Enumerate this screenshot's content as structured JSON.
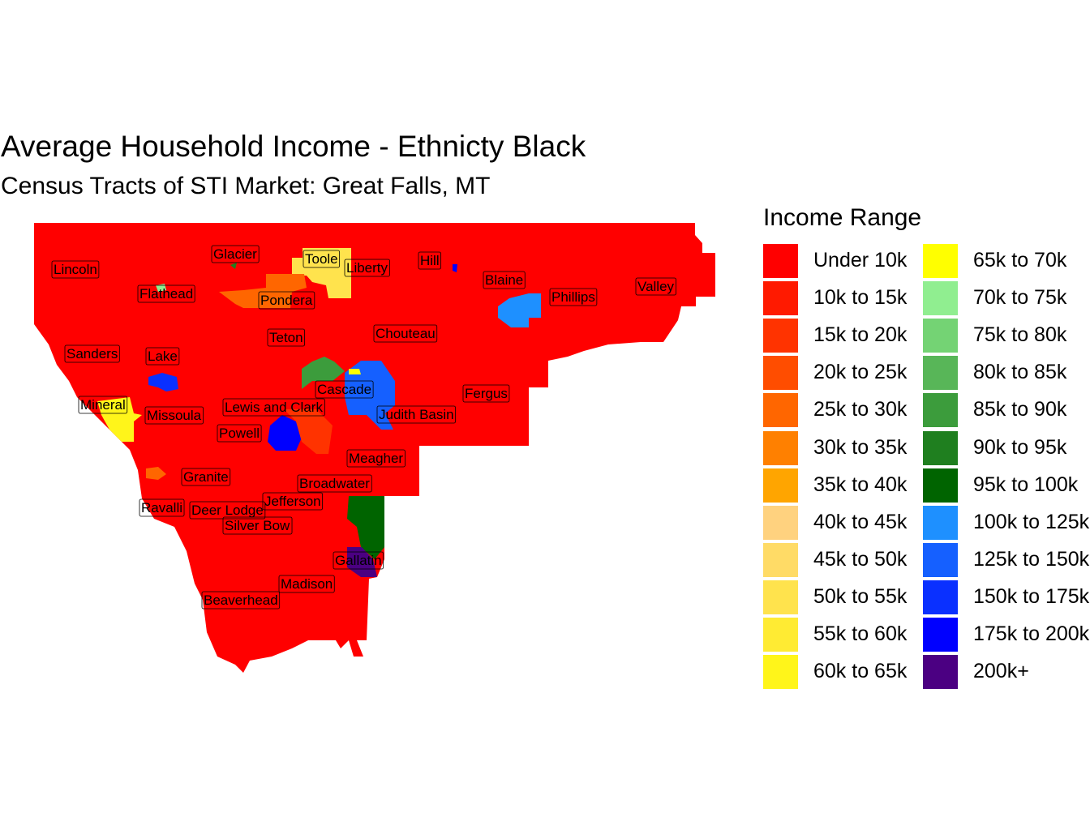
{
  "title": "Average Household Income - Ethnicty Black",
  "subtitle": "Census Tracts of STI Market: Great Falls, MT",
  "legend": {
    "title": "Income Range",
    "items": [
      {
        "label": "Under 10k",
        "color": "#FF0000"
      },
      {
        "label": "10k to 15k",
        "color": "#FF1A00"
      },
      {
        "label": "15k to 20k",
        "color": "#FF3300"
      },
      {
        "label": "20k to 25k",
        "color": "#FF4D00"
      },
      {
        "label": "25k to 30k",
        "color": "#FF6600"
      },
      {
        "label": "30k to 35k",
        "color": "#FF8000"
      },
      {
        "label": "35k to 40k",
        "color": "#FFA500"
      },
      {
        "label": "40k to 45k",
        "color": "#FFD27F"
      },
      {
        "label": "45k to 50k",
        "color": "#FFDB66"
      },
      {
        "label": "50k to 55k",
        "color": "#FFE34D"
      },
      {
        "label": "55k to 60k",
        "color": "#FFEB33"
      },
      {
        "label": "60k to 65k",
        "color": "#FFF51A"
      },
      {
        "label": "65k to 70k",
        "color": "#FFFF00"
      },
      {
        "label": "70k to 75k",
        "color": "#90EE90"
      },
      {
        "label": "75k to 80k",
        "color": "#74D374"
      },
      {
        "label": "80k to 85k",
        "color": "#58B658"
      },
      {
        "label": "85k to 90k",
        "color": "#3C9C3C"
      },
      {
        "label": "90k to 95k",
        "color": "#1F7F1F"
      },
      {
        "label": "95k to 100k",
        "color": "#006400"
      },
      {
        "label": "100k to 125k",
        "color": "#1E90FF"
      },
      {
        "label": "125k to 150k",
        "color": "#1560FF"
      },
      {
        "label": "150k to 175k",
        "color": "#0A30FF"
      },
      {
        "label": "175k to 200k",
        "color": "#0000FF"
      },
      {
        "label": "200k+",
        "color": "#4B0082"
      }
    ]
  },
  "counties": [
    "Lincoln",
    "Glacier",
    "Toole",
    "Liberty",
    "Hill",
    "Blaine",
    "Phillips",
    "Valley",
    "Flathead",
    "Pondera",
    "Teton",
    "Chouteau",
    "Sanders",
    "Lake",
    "Cascade",
    "Fergus",
    "Mineral",
    "Missoula",
    "Lewis and Clark",
    "Judith Basin",
    "Powell",
    "Meagher",
    "Granite",
    "Broadwater",
    "Ravalli",
    "Deer Lodge",
    "Jefferson",
    "Silver Bow",
    "Gallatin",
    "Madison",
    "Beaverhead"
  ]
}
